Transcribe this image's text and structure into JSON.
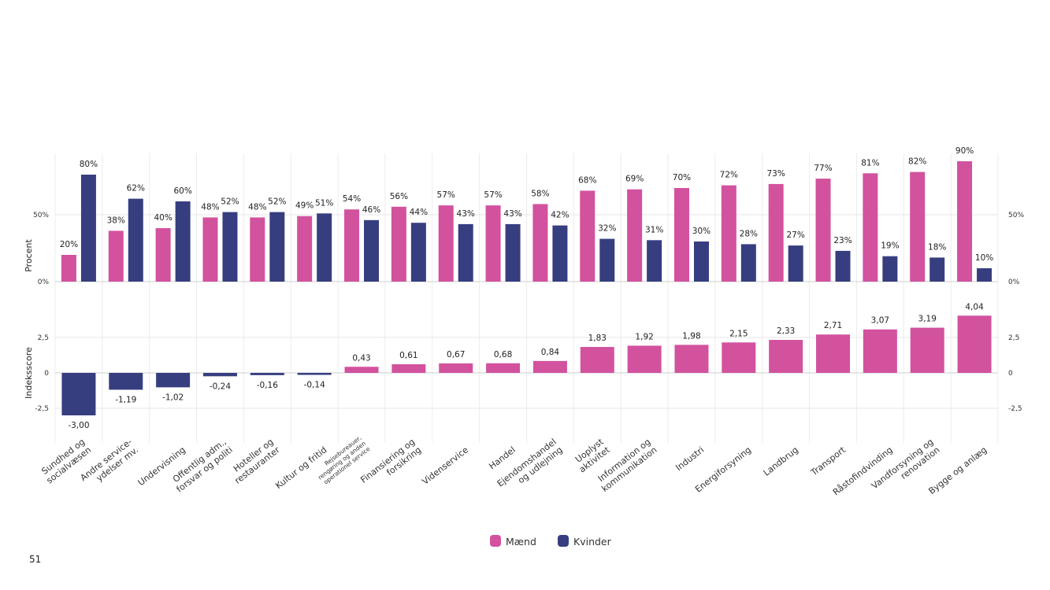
{
  "chart_data": [
    {
      "type": "bar",
      "panel": "top",
      "ylabel": "Procent",
      "ylim": [
        0,
        100
      ],
      "yticks": [
        "0%",
        "50%"
      ],
      "categories": [
        "Sundhed og\nsocialvæsen",
        "Andre service-\nydelser mv.",
        "Undervisning",
        "Offentlig adm.,\nforsvar og politi",
        "Hoteller og\nrestauranter",
        "Kultur og fritid",
        "Rejsebureauer,\nrengøring og anden\noperationel service",
        "Finansiering og\nforsikring",
        "Videnservice",
        "Handel",
        "Ejendomshandel\nog udlejning",
        "Uoplyst\naktivitet",
        "Information og\nkommunikation",
        "Industri",
        "Energiforsyning",
        "Landbrug",
        "Transport",
        "Råstofindvinding",
        "Vandforsyning og\nrenovation",
        "Bygge og anlæg"
      ],
      "series": [
        {
          "name": "Mænd",
          "color": "#d2529e",
          "values": [
            20,
            38,
            40,
            48,
            48,
            49,
            54,
            56,
            57,
            57,
            58,
            68,
            69,
            70,
            72,
            73,
            77,
            81,
            82,
            90
          ],
          "labels": [
            "20%",
            "38%",
            "40%",
            "48%",
            "48%",
            "49%",
            "54%",
            "56%",
            "57%",
            "57%",
            "58%",
            "68%",
            "69%",
            "70%",
            "72%",
            "73%",
            "77%",
            "81%",
            "82%",
            "90%"
          ]
        },
        {
          "name": "Kvinder",
          "color": "#363e80",
          "values": [
            80,
            62,
            60,
            52,
            52,
            51,
            46,
            44,
            43,
            43,
            42,
            32,
            31,
            30,
            28,
            27,
            23,
            19,
            18,
            10
          ],
          "labels": [
            "80%",
            "62%",
            "60%",
            "52%",
            "52%",
            "51%",
            "46%",
            "44%",
            "43%",
            "43%",
            "42%",
            "32%",
            "31%",
            "30%",
            "28%",
            "27%",
            "23%",
            "19%",
            "18%",
            "10%"
          ]
        }
      ]
    },
    {
      "type": "bar",
      "panel": "bottom",
      "ylabel": "Indeksscore",
      "ylim": [
        -3.5,
        5
      ],
      "yticks": [
        "-2,5",
        "0",
        "2,5"
      ],
      "positive_color": "#d2529e",
      "negative_color": "#363e80",
      "values": [
        -3.0,
        -1.19,
        -1.02,
        -0.24,
        -0.16,
        -0.14,
        0.43,
        0.61,
        0.67,
        0.68,
        0.84,
        1.83,
        1.92,
        1.98,
        2.15,
        2.33,
        2.71,
        3.07,
        3.19,
        4.04
      ],
      "labels": [
        "-3,00",
        "-1,19",
        "-1,02",
        "-0,24",
        "-0,16",
        "-0,14",
        "0,43",
        "0,61",
        "0,67",
        "0,68",
        "0,84",
        "1,83",
        "1,92",
        "1,98",
        "2,15",
        "2,33",
        "2,71",
        "3,07",
        "3,19",
        "4,04"
      ]
    }
  ],
  "legend": [
    {
      "label": "Mænd",
      "color": "#d2529e"
    },
    {
      "label": "Kvinder",
      "color": "#363e80"
    }
  ],
  "page_number": "51"
}
